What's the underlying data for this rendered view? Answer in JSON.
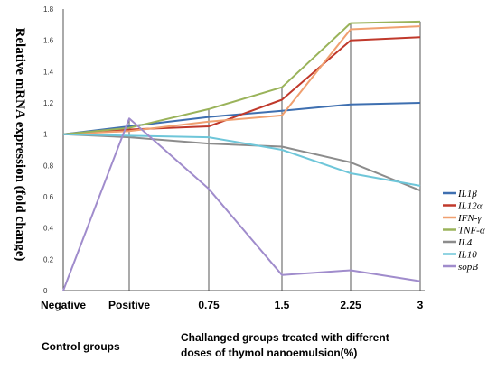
{
  "chart_data": {
    "type": "line",
    "categories": [
      "Negative",
      "Positive",
      "0.75",
      "1.5",
      "2.25",
      "3"
    ],
    "ylabel": "Relative mRNA expression (fold change)",
    "yticks": [
      "0",
      "0.2",
      "0.4",
      "0.6",
      "0.8",
      "1",
      "1.2",
      "1.4",
      "1.6",
      "1.8"
    ],
    "ylim": [
      0,
      1.8
    ],
    "grid": false,
    "legend_position": "right",
    "series": [
      {
        "name": "IL1β",
        "color": "#3e6fb0",
        "values": [
          1.0,
          1.05,
          1.11,
          1.15,
          1.19,
          1.2
        ]
      },
      {
        "name": "IL12α",
        "color": "#c0392b",
        "values": [
          1.0,
          1.03,
          1.05,
          1.22,
          1.6,
          1.62
        ]
      },
      {
        "name": "IFN-γ",
        "color": "#f0a070",
        "values": [
          1.0,
          1.02,
          1.08,
          1.12,
          1.67,
          1.69
        ]
      },
      {
        "name": "TNF-α",
        "color": "#9ab35a",
        "values": [
          1.0,
          1.04,
          1.16,
          1.3,
          1.71,
          1.72
        ]
      },
      {
        "name": "IL4",
        "color": "#8c8c8c",
        "values": [
          1.0,
          0.98,
          0.94,
          0.92,
          0.82,
          0.64
        ]
      },
      {
        "name": "IL10",
        "color": "#6ec6d9",
        "values": [
          1.0,
          0.99,
          0.98,
          0.9,
          0.75,
          0.67
        ]
      },
      {
        "name": "sopB",
        "color": "#a08ccc",
        "values": [
          0.0,
          1.1,
          0.65,
          0.1,
          0.13,
          0.06
        ]
      }
    ]
  },
  "footer": {
    "left": "Control groups",
    "right_line1": "Challanged groups treated with different",
    "right_line2": "doses of thymol nanoemulsion(%)"
  }
}
